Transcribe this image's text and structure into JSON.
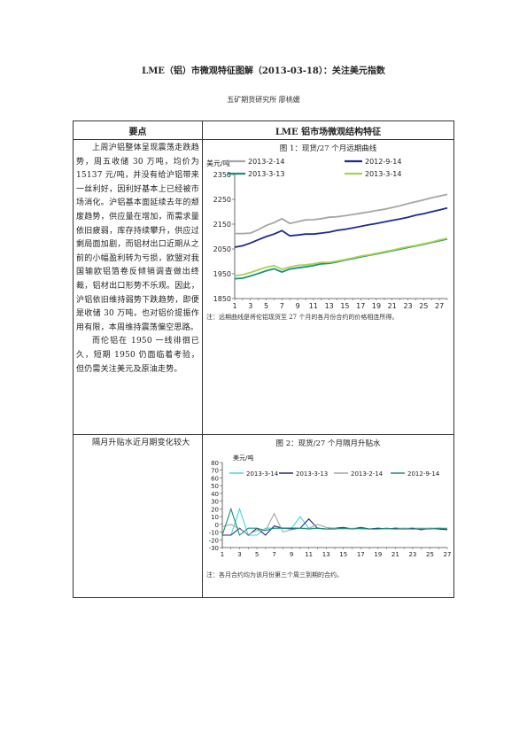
{
  "doc": {
    "title": "LME（铝）市微观特征图解（2013-03-18）：关注美元指数",
    "author": "五矿期货研究所  廖桃媛"
  },
  "table": {
    "header_left": "要点",
    "header_right": "LME 铝市场微观结构特征",
    "row1_text_p1": "上周沪铝整体呈现震荡走跌趋势，周五收储 30 万吨，均价为 15137 元/吨，并没有给沪铝带来一丝利好，因利好基本上已经被市场消化。沪铝基本面延续去年的颓废趋势，供应量在增加，而需求量依旧疲弱，库存持续攀升，供应过剩局面加剧，而铝材出口近期从之前的小幅盈利转为亏损，欧盟对我国输欧铝箔卷反倾销调查做出终裁，铝材出口形势不乐观。因此，沪铝依旧维持弱势下跌趋势，即便是收储 30 万吨，也对铝价提振作用有限，本周维持震荡偏空思路。",
    "row1_text_p2": "而伦铝在 1950 一线徘徊已久，短期 1950 仍面临着考验，但仍需关注美元及原油走势。",
    "row2_text": "隔月升贴水近月期变化较大"
  },
  "chart1": {
    "fig_title": "图 1：现货/27 个月远期曲线",
    "unit": "美元/吨",
    "note": "注：远期曲线是将伦铝现货至 27 个月的各月份合约的价格相连所得。",
    "chart_data": {
      "type": "line",
      "x": [
        1,
        2,
        3,
        4,
        5,
        6,
        7,
        8,
        9,
        10,
        11,
        12,
        13,
        14,
        15,
        16,
        17,
        18,
        19,
        20,
        21,
        22,
        23,
        24,
        25,
        26,
        27,
        28
      ],
      "xticks": [
        1,
        3,
        5,
        7,
        9,
        11,
        13,
        15,
        17,
        19,
        21,
        23,
        25,
        27
      ],
      "ylim": [
        1850,
        2350
      ],
      "yticks": [
        1850,
        1950,
        2050,
        2150,
        2250,
        2350
      ],
      "series": [
        {
          "name": "2013-2-14",
          "color": "#a6a6a6",
          "values": [
            2112,
            2112,
            2114,
            2128,
            2145,
            2156,
            2172,
            2153,
            2160,
            2167,
            2168,
            2172,
            2178,
            2180,
            2184,
            2189,
            2194,
            2199,
            2205,
            2210,
            2217,
            2224,
            2233,
            2240,
            2248,
            2256,
            2263,
            2270
          ]
        },
        {
          "name": "2012-9-14",
          "color": "#1f2a8c",
          "values": [
            2057,
            2063,
            2074,
            2087,
            2100,
            2110,
            2124,
            2103,
            2106,
            2110,
            2110,
            2114,
            2118,
            2125,
            2129,
            2135,
            2141,
            2147,
            2153,
            2159,
            2165,
            2171,
            2178,
            2186,
            2192,
            2200,
            2207,
            2215
          ]
        },
        {
          "name": "2013-3-13",
          "color": "#1a8f80",
          "values": [
            1930,
            1932,
            1941,
            1951,
            1962,
            1970,
            1957,
            1969,
            1974,
            1978,
            1983,
            1990,
            1992,
            1998,
            2005,
            2011,
            2018,
            2024,
            2030,
            2036,
            2043,
            2049,
            2056,
            2062,
            2069,
            2076,
            2083,
            2090
          ]
        },
        {
          "name": "2013-3-14",
          "color": "#a8d44a",
          "values": [
            1942,
            1946,
            1955,
            1966,
            1976,
            1983,
            1968,
            1977,
            1984,
            1986,
            1990,
            1996,
            1996,
            2001,
            2007,
            2014,
            2021,
            2026,
            2032,
            2039,
            2045,
            2052,
            2059,
            2064,
            2071,
            2078,
            2086,
            2093
          ]
        }
      ]
    }
  },
  "chart2": {
    "fig_title": "图 2：现货/27 个月隔月升贴水",
    "unit": "美元/吨",
    "note": "注：各月合约均为该月份第三个周三到期的合约。",
    "chart_data": {
      "type": "line",
      "x": [
        1,
        2,
        3,
        4,
        5,
        6,
        7,
        8,
        9,
        10,
        11,
        12,
        13,
        14,
        15,
        16,
        17,
        18,
        19,
        20,
        21,
        22,
        23,
        24,
        25,
        26,
        27
      ],
      "xticks": [
        1,
        3,
        5,
        7,
        9,
        11,
        13,
        15,
        17,
        19,
        21,
        23,
        25,
        27
      ],
      "ylim": [
        -30,
        80
      ],
      "yticks": [
        -30,
        -20,
        -10,
        0,
        10,
        20,
        30,
        40,
        50,
        60,
        70,
        80
      ],
      "series": [
        {
          "name": "2013-3-14",
          "color": "#3fd6e6",
          "values": [
            -14,
            -14,
            20,
            -14,
            -14,
            -5,
            -5,
            -5,
            -5,
            10,
            -5,
            -5,
            -6,
            -6,
            -5,
            -6,
            -5,
            -6,
            -5,
            -6,
            -5,
            -5,
            -5,
            -5,
            -6,
            -5,
            -5
          ]
        },
        {
          "name": "2013-3-13",
          "color": "#1f2a8c",
          "values": [
            -14,
            -14,
            -5,
            -14,
            -5,
            -14,
            -2,
            -5,
            -5,
            -5,
            7,
            -5,
            -6,
            -5,
            -4,
            -6,
            -4,
            -6,
            -5,
            -6,
            -5,
            -6,
            -5,
            -7,
            -5,
            -6,
            -7
          ]
        },
        {
          "name": "2013-2-14",
          "color": "#a6a6a6",
          "values": [
            -3,
            0,
            -6,
            -13,
            -8,
            -8,
            14,
            -10,
            -7,
            -5,
            -5,
            0,
            -4,
            -5,
            -6,
            -5,
            -6,
            -6,
            -6,
            -6,
            -6,
            -5,
            -6,
            -5,
            -5,
            -5,
            -5
          ]
        },
        {
          "name": "2012-9-14",
          "color": "#1a8f80",
          "values": [
            -14,
            20,
            -14,
            -5,
            -5,
            -8,
            -5,
            -5,
            -6,
            -5,
            -6,
            -5,
            -6,
            -6,
            -5,
            -6,
            -5,
            -6,
            -6,
            -5,
            -6,
            -6,
            -6,
            -6,
            -6,
            -5,
            -6
          ]
        }
      ]
    }
  }
}
